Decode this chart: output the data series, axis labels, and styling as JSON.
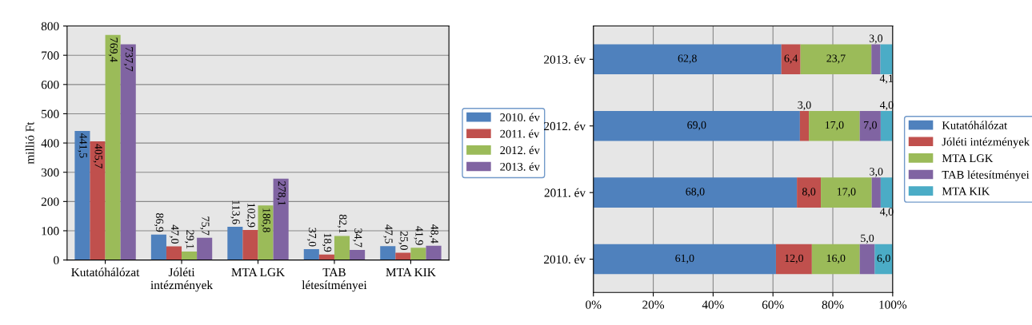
{
  "chart_data": [
    {
      "type": "bar",
      "ylabel": "millió Ft",
      "categories": [
        "Kutatóhálózat",
        "Jóléti\nintézmények",
        "MTA LGK",
        "TAB\nlétesítményei",
        "MTA KIK"
      ],
      "ylim": [
        0,
        800
      ],
      "yticks": [
        0,
        100,
        200,
        300,
        400,
        500,
        600,
        700,
        800
      ],
      "grid": "y",
      "legend": "right",
      "series": [
        {
          "name": "2010. év",
          "color": "#4f81bd",
          "values": [
            441.5,
            86.9,
            113.6,
            37.0,
            47.5
          ],
          "value_labels": [
            "441,5",
            "86,9",
            "113,6",
            "37,0",
            "47,5"
          ]
        },
        {
          "name": "2011. év",
          "color": "#c0504d",
          "values": [
            405.7,
            47.0,
            102.9,
            18.9,
            25.0
          ],
          "value_labels": [
            "405,7",
            "47,0",
            "102,9",
            "18,9",
            "25,0"
          ]
        },
        {
          "name": "2012. év",
          "color": "#9bbb59",
          "values": [
            769.4,
            29.1,
            186.8,
            82.1,
            41.9
          ],
          "value_labels": [
            "769,4",
            "29,1",
            "186,8",
            "82,1",
            "41,9"
          ]
        },
        {
          "name": "2013. év",
          "color": "#8064a2",
          "values": [
            737.7,
            75.7,
            278.1,
            34.7,
            48.4
          ],
          "value_labels": [
            "737,7",
            "75,7",
            "278,1",
            "34,7",
            "48,4"
          ]
        }
      ]
    },
    {
      "type": "bar",
      "orientation": "horizontal",
      "stacked": true,
      "categories": [
        "2013. év",
        "2012. év",
        "2011. év",
        "2010. év"
      ],
      "xlim": [
        0,
        100
      ],
      "xticks": [
        {
          "value": 0,
          "label": "0%"
        },
        {
          "value": 20,
          "label": "20%"
        },
        {
          "value": 40,
          "label": "40%"
        },
        {
          "value": 60,
          "label": "60%"
        },
        {
          "value": 80,
          "label": "80%"
        },
        {
          "value": 100,
          "label": "100%"
        }
      ],
      "grid": "x",
      "legend": "right",
      "series": [
        {
          "name": "Kutatóhálózat",
          "color": "#4f81bd",
          "values": [
            62.8,
            69.0,
            68.0,
            61.0
          ],
          "value_labels": [
            "62,8",
            "69,0",
            "68,0",
            "61,0"
          ]
        },
        {
          "name": "Jóléti intézmények",
          "color": "#c0504d",
          "values": [
            6.4,
            3.0,
            8.0,
            12.0
          ],
          "value_labels": [
            "6,4",
            "3,0",
            "8,0",
            "12,0"
          ]
        },
        {
          "name": "MTA LGK",
          "color": "#9bbb59",
          "values": [
            23.7,
            17.0,
            17.0,
            16.0
          ],
          "value_labels": [
            "23,7",
            "17,0",
            "17,0",
            "16,0"
          ]
        },
        {
          "name": "TAB létesítményei",
          "color": "#8064a2",
          "values": [
            3.0,
            7.0,
            3.0,
            5.0
          ],
          "value_labels": [
            "3,0",
            "7,0",
            "3,0",
            "5,0"
          ]
        },
        {
          "name": "MTA KIK",
          "color": "#4bacc6",
          "values": [
            4.1,
            4.0,
            4.0,
            6.0
          ],
          "value_labels": [
            "4,1",
            "4,0",
            "4,0",
            "6,0"
          ]
        }
      ]
    }
  ]
}
